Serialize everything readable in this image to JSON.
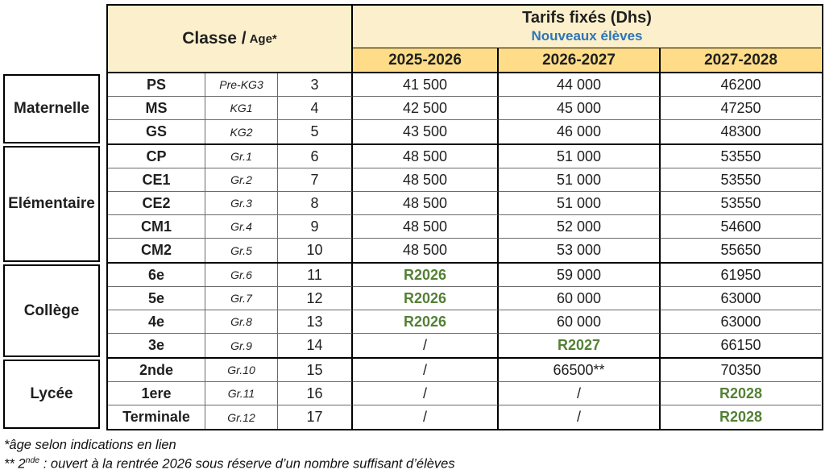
{
  "colors": {
    "header_cream": "#FCF0CC",
    "header_yellow": "#FFDD88",
    "ready_green": "#538135",
    "subtitle_blue": "#2E75B6"
  },
  "header": {
    "classe": "Classe /",
    "age": "Age*",
    "tarifs_title": "Tarifs fixés (Dhs)",
    "tarifs_subtitle": "Nouveaux élèves",
    "years": [
      "2025-2026",
      "2026-2027",
      "2027-2028"
    ]
  },
  "sections": [
    {
      "label": "Maternelle",
      "rows": [
        {
          "classe": "PS",
          "grade": "Pre-KG3",
          "age": "3",
          "fees": [
            {
              "text": "41 500"
            },
            {
              "text": "44 000"
            },
            {
              "text": "46200"
            }
          ]
        },
        {
          "classe": "MS",
          "grade": "KG1",
          "age": "4",
          "fees": [
            {
              "text": "42 500"
            },
            {
              "text": "45 000"
            },
            {
              "text": "47250"
            }
          ]
        },
        {
          "classe": "GS",
          "grade": "KG2",
          "age": "5",
          "fees": [
            {
              "text": "43 500"
            },
            {
              "text": "46 000"
            },
            {
              "text": "48300"
            }
          ]
        }
      ]
    },
    {
      "label": "Elémentaire",
      "rows": [
        {
          "classe": "CP",
          "grade": "Gr.1",
          "age": "6",
          "fees": [
            {
              "text": "48 500"
            },
            {
              "text": "51 000"
            },
            {
              "text": "53550"
            }
          ]
        },
        {
          "classe": "CE1",
          "grade": "Gr.2",
          "age": "7",
          "fees": [
            {
              "text": "48 500"
            },
            {
              "text": "51 000"
            },
            {
              "text": "53550"
            }
          ]
        },
        {
          "classe": "CE2",
          "grade": "Gr.3",
          "age": "8",
          "fees": [
            {
              "text": "48 500"
            },
            {
              "text": "51 000"
            },
            {
              "text": "53550"
            }
          ]
        },
        {
          "classe": "CM1",
          "grade": "Gr.4",
          "age": "9",
          "fees": [
            {
              "text": "48 500"
            },
            {
              "text": "52 000"
            },
            {
              "text": "54600"
            }
          ]
        },
        {
          "classe": "CM2",
          "grade": "Gr.5",
          "age": "10",
          "fees": [
            {
              "text": "48 500"
            },
            {
              "text": "53 000"
            },
            {
              "text": "55650"
            }
          ]
        }
      ]
    },
    {
      "label": "Collège",
      "rows": [
        {
          "classe": "6e",
          "grade": "Gr.6",
          "age": "11",
          "fees": [
            {
              "text": "R2026",
              "green": true
            },
            {
              "text": "59 000"
            },
            {
              "text": "61950"
            }
          ]
        },
        {
          "classe": "5e",
          "grade": "Gr.7",
          "age": "12",
          "fees": [
            {
              "text": "R2026",
              "green": true
            },
            {
              "text": "60 000"
            },
            {
              "text": "63000"
            }
          ]
        },
        {
          "classe": "4e",
          "grade": "Gr.8",
          "age": "13",
          "fees": [
            {
              "text": "R2026",
              "green": true
            },
            {
              "text": "60 000"
            },
            {
              "text": "63000"
            }
          ]
        },
        {
          "classe": "3e",
          "grade": "Gr.9",
          "age": "14",
          "fees": [
            {
              "text": "/"
            },
            {
              "text": "R2027",
              "green": true
            },
            {
              "text": "66150"
            }
          ]
        }
      ]
    },
    {
      "label": "Lycée",
      "rows": [
        {
          "classe": "2nde",
          "grade": "Gr.10",
          "age": "15",
          "fees": [
            {
              "text": "/"
            },
            {
              "text": "66500**"
            },
            {
              "text": "70350"
            }
          ]
        },
        {
          "classe": "1ere",
          "grade": "Gr.11",
          "age": "16",
          "fees": [
            {
              "text": "/"
            },
            {
              "text": "/"
            },
            {
              "text": "R2028",
              "green": true
            }
          ]
        },
        {
          "classe": "Terminale",
          "grade": "Gr.12",
          "age": "17",
          "fees": [
            {
              "text": "/"
            },
            {
              "text": "/"
            },
            {
              "text": "R2028",
              "green": true
            }
          ]
        }
      ]
    }
  ],
  "footnotes": {
    "line1": "*âge selon indications en lien",
    "line2_prefix": "** 2",
    "line2_sup": "nde",
    "line2_rest": " : ouvert à la rentrée 2026 sous réserve d’un nombre suffisant d’élèves"
  }
}
